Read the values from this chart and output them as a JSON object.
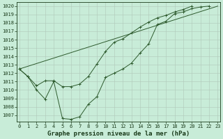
{
  "xlabel": "Graphe pression niveau de la mer (hPa)",
  "x": [
    0,
    1,
    2,
    3,
    4,
    5,
    6,
    7,
    8,
    9,
    10,
    11,
    12,
    13,
    14,
    15,
    16,
    17,
    18,
    19,
    20,
    21,
    22,
    23
  ],
  "line1_y": [
    1012.5,
    1011.6,
    1010.0,
    1008.9,
    1011.0,
    1006.6,
    1006.5,
    1006.8,
    1008.3,
    1009.2,
    1011.5,
    1012.0,
    1012.5,
    1013.2,
    1014.4,
    1015.5,
    1017.8,
    1018.2,
    1019.1,
    1019.3,
    1019.7,
    1019.9,
    1020.0,
    null
  ],
  "line2_y": [
    1012.5,
    null,
    null,
    null,
    null,
    null,
    null,
    null,
    null,
    null,
    null,
    null,
    null,
    null,
    null,
    null,
    null,
    null,
    null,
    null,
    null,
    null,
    null,
    1020.0
  ],
  "line3_y": [
    1012.5,
    1011.6,
    1010.5,
    1011.1,
    1011.1,
    1010.4,
    1010.4,
    1010.7,
    1011.6,
    1013.1,
    1014.6,
    1015.7,
    1016.1,
    1016.8,
    1017.5,
    1018.1,
    1018.6,
    1018.9,
    1019.3,
    1019.6,
    1020.0,
    null,
    null,
    null
  ],
  "bg_color": "#c8ecd8",
  "grid_color": "#b0c8b8",
  "line_color": "#2d5a2d",
  "ylim_min": 1006.2,
  "ylim_max": 1020.5,
  "yticks": [
    1007,
    1008,
    1009,
    1010,
    1011,
    1012,
    1013,
    1014,
    1015,
    1016,
    1017,
    1018,
    1019,
    1020
  ],
  "xticks": [
    0,
    1,
    2,
    3,
    4,
    5,
    6,
    7,
    8,
    9,
    10,
    11,
    12,
    13,
    14,
    15,
    16,
    17,
    18,
    19,
    20,
    21,
    22,
    23
  ],
  "tick_fs": 5.0,
  "xlabel_fs": 6.5,
  "label_color": "#1a3a1a",
  "marker_size": 2.5,
  "lw": 0.7
}
